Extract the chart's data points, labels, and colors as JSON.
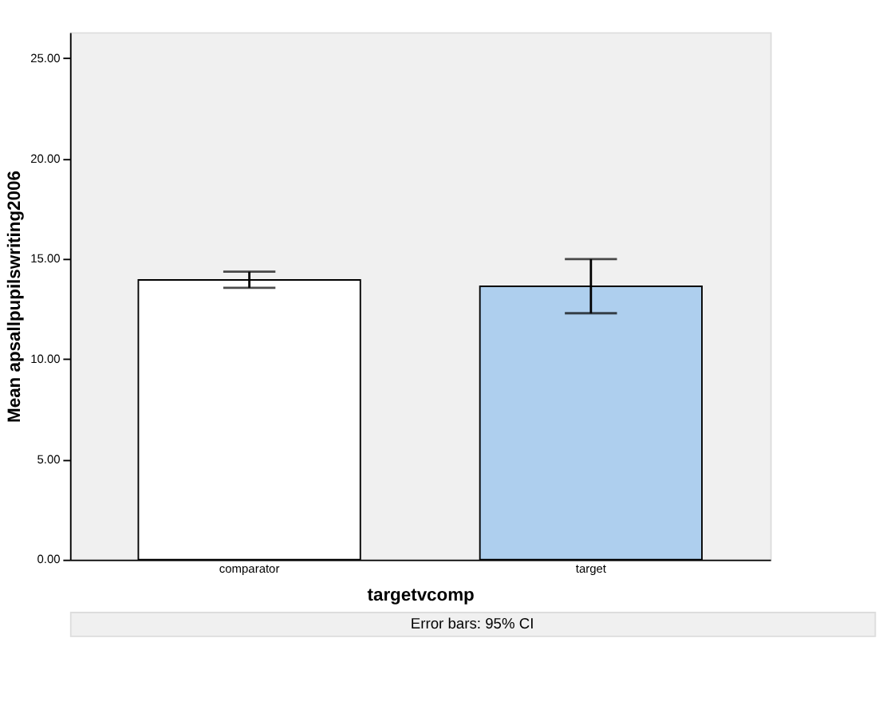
{
  "chart_data": {
    "type": "bar",
    "xlabel": "targetvcomp",
    "ylabel": "Mean apsallpupilswriting2006",
    "categories": [
      "comparator",
      "target"
    ],
    "values": [
      13.95,
      13.63
    ],
    "colors": [
      "#ffffff",
      "#aecfee"
    ],
    "errors": [
      [
        13.56,
        14.36
      ],
      [
        12.29,
        14.99
      ]
    ],
    "ylim": [
      0,
      26.3
    ],
    "yticks": [
      {
        "value": 0,
        "label": "0.00"
      },
      {
        "value": 5,
        "label": "5.00"
      },
      {
        "value": 10,
        "label": "10.00"
      },
      {
        "value": 15,
        "label": "15.00"
      },
      {
        "value": 20,
        "label": "20.00"
      },
      {
        "value": 25,
        "label": "25.00"
      }
    ],
    "annotations": [
      "Error bars: 95% CI"
    ],
    "grid": false,
    "legend": false
  }
}
